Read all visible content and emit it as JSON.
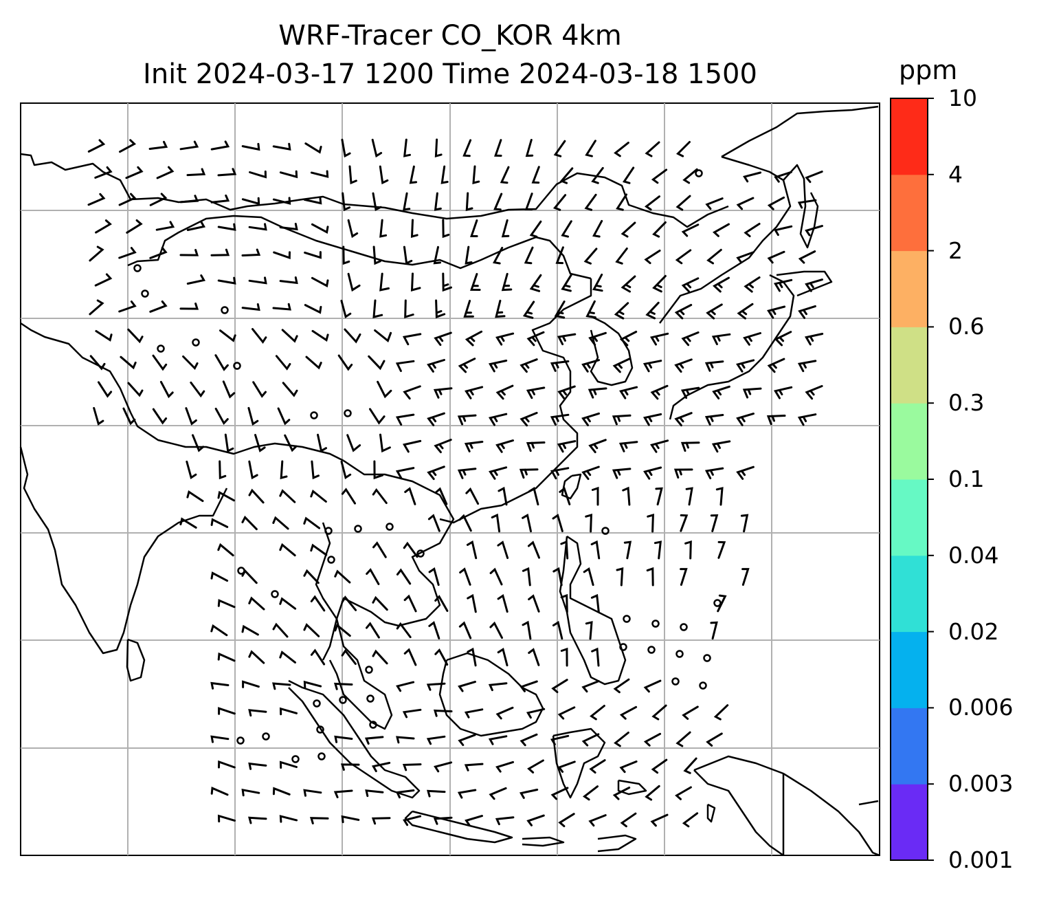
{
  "title": {
    "line1": "WRF-Tracer CO_KOR 4km",
    "line2": "Init 2024-03-17 1200 Time 2024-03-18 1500"
  },
  "colorbar": {
    "unit": "ppm",
    "levels": [
      "0.001",
      "0.003",
      "0.006",
      "0.02",
      "0.04",
      "0.1",
      "0.3",
      "0.6",
      "2",
      "4",
      "10"
    ],
    "colors": [
      "#6a2bf5",
      "#3377f2",
      "#05b1ee",
      "#30e0d6",
      "#66f9c4",
      "#9afa9e",
      "#cfe086",
      "#fdb063",
      "#fe6f3c",
      "#fe2b18"
    ]
  },
  "map": {
    "projection": "regular lat/lon",
    "gridlines": true,
    "features": [
      "coastlines",
      "country borders",
      "wind barbs"
    ]
  }
}
